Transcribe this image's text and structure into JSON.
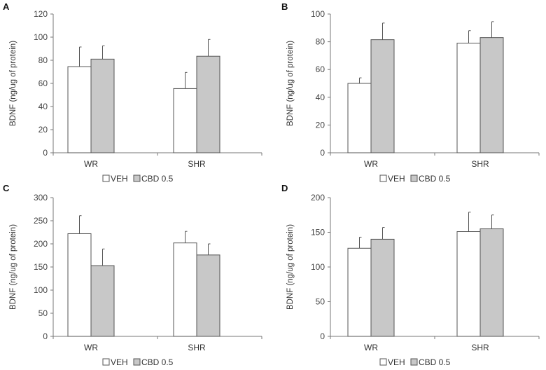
{
  "panels": [
    {
      "letter": "A",
      "chart_data": {
        "type": "bar",
        "categories": [
          "WR",
          "SHR"
        ],
        "series": [
          {
            "name": "VEH",
            "values": [
              74.5,
              55.5
            ],
            "errors": [
              17,
              14
            ],
            "color": "#ffffff"
          },
          {
            "name": "CBD 0.5",
            "values": [
              81,
              83.5
            ],
            "errors": [
              11.5,
              14.5
            ],
            "color": "#c8c8c8"
          }
        ],
        "ylabel": "BDNF (ng/ug of protein)",
        "ylim": [
          0,
          120
        ],
        "yticks": [
          0,
          20,
          40,
          60,
          80,
          100,
          120
        ],
        "legend_position": "bottom-center"
      }
    },
    {
      "letter": "B",
      "chart_data": {
        "type": "bar",
        "categories": [
          "WR",
          "SHR"
        ],
        "series": [
          {
            "name": "VEH",
            "values": [
              50,
              79
            ],
            "errors": [
              4,
              9
            ],
            "color": "#ffffff"
          },
          {
            "name": "CBD 0.5",
            "values": [
              81.5,
              83
            ],
            "errors": [
              12,
              11.5
            ],
            "color": "#c8c8c8"
          }
        ],
        "ylabel": "BDNF (ng/ug of protein)",
        "ylim": [
          0,
          100
        ],
        "yticks": [
          0,
          20,
          40,
          60,
          80,
          100
        ],
        "legend_position": "bottom-center"
      }
    },
    {
      "letter": "C",
      "chart_data": {
        "type": "bar",
        "categories": [
          "WR",
          "SHR"
        ],
        "series": [
          {
            "name": "VEH",
            "values": [
              222,
              202
            ],
            "errors": [
              39,
              25
            ],
            "color": "#ffffff"
          },
          {
            "name": "CBD 0.5",
            "values": [
              153,
              176
            ],
            "errors": [
              36,
              24
            ],
            "color": "#c8c8c8"
          }
        ],
        "ylabel": "BDNF (ng/ug of protein)",
        "ylim": [
          0,
          300
        ],
        "yticks": [
          0,
          50,
          100,
          150,
          200,
          250,
          300
        ],
        "legend_position": "bottom-center"
      }
    },
    {
      "letter": "D",
      "chart_data": {
        "type": "bar",
        "categories": [
          "WR",
          "SHR"
        ],
        "series": [
          {
            "name": "VEH",
            "values": [
              127,
              151
            ],
            "errors": [
              16,
              28
            ],
            "color": "#ffffff"
          },
          {
            "name": "CBD 0.5",
            "values": [
              140,
              155
            ],
            "errors": [
              17,
              20
            ],
            "color": "#c8c8c8"
          }
        ],
        "ylabel": "BDNF (ng/ug of protein)",
        "ylim": [
          0,
          200
        ],
        "yticks": [
          0,
          50,
          100,
          150,
          200
        ],
        "legend_position": "bottom-center"
      }
    }
  ]
}
